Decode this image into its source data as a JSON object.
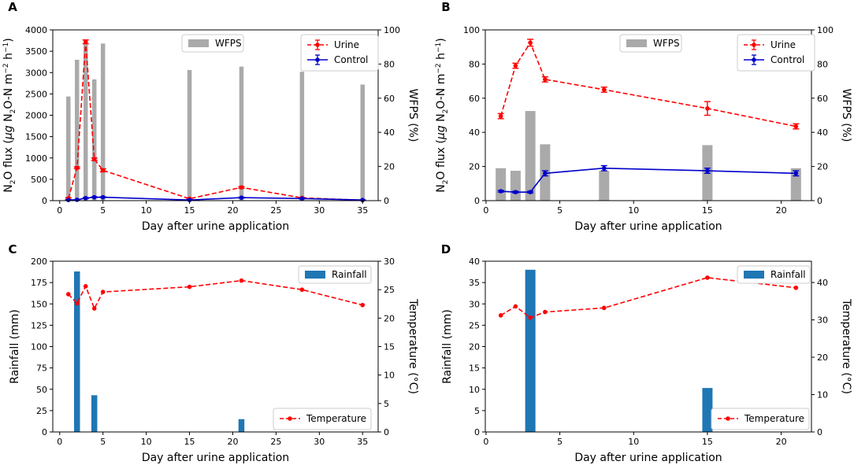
{
  "chart_data": [
    {
      "panel": "A",
      "type": "bar+line",
      "xlabel": "Day after urine application",
      "ylabel": "N2O flux (μg N2O-N m−2 h−1)",
      "ylabel_parts": [
        "N",
        "2",
        "O flux (",
        "μg",
        " N",
        "2",
        "O-N m",
        "−2",
        " h",
        "−1",
        ")"
      ],
      "y2label": "WFPS (%)",
      "xlim": [
        -0.8,
        36.8
      ],
      "ylim": [
        0,
        4000
      ],
      "y2lim": [
        0,
        100
      ],
      "xticks": [
        0,
        5,
        10,
        15,
        20,
        25,
        30,
        35
      ],
      "yticks": [
        0,
        500,
        1000,
        1500,
        2000,
        2500,
        3000,
        3500,
        4000
      ],
      "y2ticks": [
        0,
        20,
        40,
        60,
        80,
        100
      ],
      "bars": {
        "name": "WFPS",
        "color": "#aaaaaa",
        "axis": "right",
        "x": [
          1,
          2,
          3,
          4,
          5,
          15,
          21,
          28,
          35
        ],
        "values": [
          61,
          82.5,
          91.5,
          71,
          92,
          76.5,
          78.5,
          75.5,
          68
        ]
      },
      "series": [
        {
          "name": "Urine",
          "color": "#ff0000",
          "style": "dashed",
          "axis": "left",
          "x": [
            1,
            2,
            3,
            4,
            5,
            15,
            21,
            28,
            35
          ],
          "values": [
            50,
            770,
            3720,
            970,
            710,
            45,
            310,
            65,
            10
          ],
          "err": [
            20,
            20,
            45,
            30,
            35,
            10,
            20,
            10,
            5
          ]
        },
        {
          "name": "Control",
          "color": "#0000cc",
          "style": "solid",
          "axis": "left",
          "x": [
            1,
            2,
            3,
            4,
            5,
            15,
            21,
            28,
            35
          ],
          "values": [
            15,
            20,
            60,
            80,
            80,
            15,
            70,
            50,
            15
          ],
          "err": [
            5,
            5,
            10,
            10,
            10,
            5,
            10,
            10,
            5
          ]
        }
      ],
      "legend_bars_label": "WFPS"
    },
    {
      "panel": "B",
      "type": "bar+line",
      "xlabel": "Day after urine application",
      "ylabel": "N2O flux (μg N2O-N m−2 h−1)",
      "ylabel_parts": [
        "N",
        "2",
        "O flux (",
        "μg",
        " N",
        "2",
        "O-N m",
        "−2",
        " h",
        "−1",
        ")"
      ],
      "y2label": "WFPS (%)",
      "xlim": [
        -0.05,
        22.05
      ],
      "ylim": [
        0,
        100
      ],
      "y2lim": [
        0,
        100
      ],
      "xticks": [
        0,
        5,
        10,
        15,
        20
      ],
      "yticks": [
        0,
        20,
        40,
        60,
        80,
        100
      ],
      "y2ticks": [
        0,
        20,
        40,
        60,
        80,
        100
      ],
      "bars": {
        "name": "WFPS",
        "color": "#aaaaaa",
        "axis": "right",
        "x": [
          1,
          2,
          3,
          4,
          8,
          15,
          21
        ],
        "values": [
          19,
          17.5,
          52.5,
          33,
          17.5,
          32.5,
          19
        ]
      },
      "series": [
        {
          "name": "Urine",
          "color": "#ff0000",
          "style": "dashed",
          "axis": "left",
          "x": [
            1,
            2,
            3,
            4,
            8,
            15,
            21
          ],
          "values": [
            49.5,
            79,
            92.5,
            71,
            65,
            54,
            43.5
          ],
          "err": [
            1.5,
            1.5,
            2,
            1.5,
            1.5,
            4,
            1.5
          ]
        },
        {
          "name": "Control",
          "color": "#0000cc",
          "style": "solid",
          "axis": "left",
          "x": [
            1,
            2,
            3,
            4,
            8,
            15,
            21
          ],
          "values": [
            5.5,
            5,
            5,
            16,
            19,
            17.5,
            16
          ],
          "err": [
            0.5,
            0.5,
            0.5,
            1.5,
            1.5,
            1.5,
            1.5
          ]
        }
      ],
      "legend_bars_label": "WFPS"
    },
    {
      "panel": "C",
      "type": "bar+line",
      "xlabel": "Day after urine application",
      "ylabel": "Rainfall (mm)",
      "y2label": "Temperature (°C)",
      "xlim": [
        -0.8,
        36.8
      ],
      "ylim": [
        0,
        200
      ],
      "y2lim": [
        0,
        30
      ],
      "xticks": [
        0,
        5,
        10,
        15,
        20,
        25,
        30,
        35
      ],
      "yticks": [
        0,
        25,
        50,
        75,
        100,
        125,
        150,
        175,
        200
      ],
      "y2ticks": [
        0,
        5,
        10,
        15,
        20,
        25,
        30
      ],
      "bars": {
        "name": "Rainfall",
        "color": "#1f77b4",
        "axis": "left",
        "x": [
          2,
          4,
          21
        ],
        "values": [
          188,
          43,
          15
        ]
      },
      "series": [
        {
          "name": "Temperature",
          "color": "#ff0000",
          "style": "dashed",
          "axis": "right",
          "x": [
            1,
            2,
            3,
            4,
            5,
            15,
            21,
            28,
            35
          ],
          "values": [
            24.2,
            22.6,
            25.6,
            21.7,
            24.6,
            25.5,
            26.6,
            25.0,
            22.3
          ]
        }
      ],
      "legend_bars_label": "Rainfall"
    },
    {
      "panel": "D",
      "type": "bar+line",
      "xlabel": "Day after urine application",
      "ylabel": "Rainfall (mm)",
      "y2label": "Temperature (°C)",
      "xlim": [
        -0.05,
        22.05
      ],
      "ylim": [
        0,
        40
      ],
      "y2lim": [
        0,
        45.7
      ],
      "xticks": [
        0,
        5,
        10,
        15,
        20
      ],
      "yticks": [
        0,
        5,
        10,
        15,
        20,
        25,
        30,
        35,
        40
      ],
      "y2ticks": [
        0,
        10,
        20,
        30,
        40
      ],
      "bars": {
        "name": "Rainfall",
        "color": "#1f77b4",
        "axis": "left",
        "x": [
          3,
          15
        ],
        "values": [
          38,
          10.3
        ]
      },
      "series": [
        {
          "name": "Temperature",
          "color": "#ff0000",
          "style": "dashed",
          "axis": "right",
          "x": [
            1,
            2,
            3,
            4,
            8,
            15,
            21
          ],
          "values": [
            31.2,
            33.6,
            30.6,
            32.1,
            33.2,
            41.3,
            38.6
          ]
        }
      ],
      "legend_bars_label": "Rainfall"
    }
  ]
}
